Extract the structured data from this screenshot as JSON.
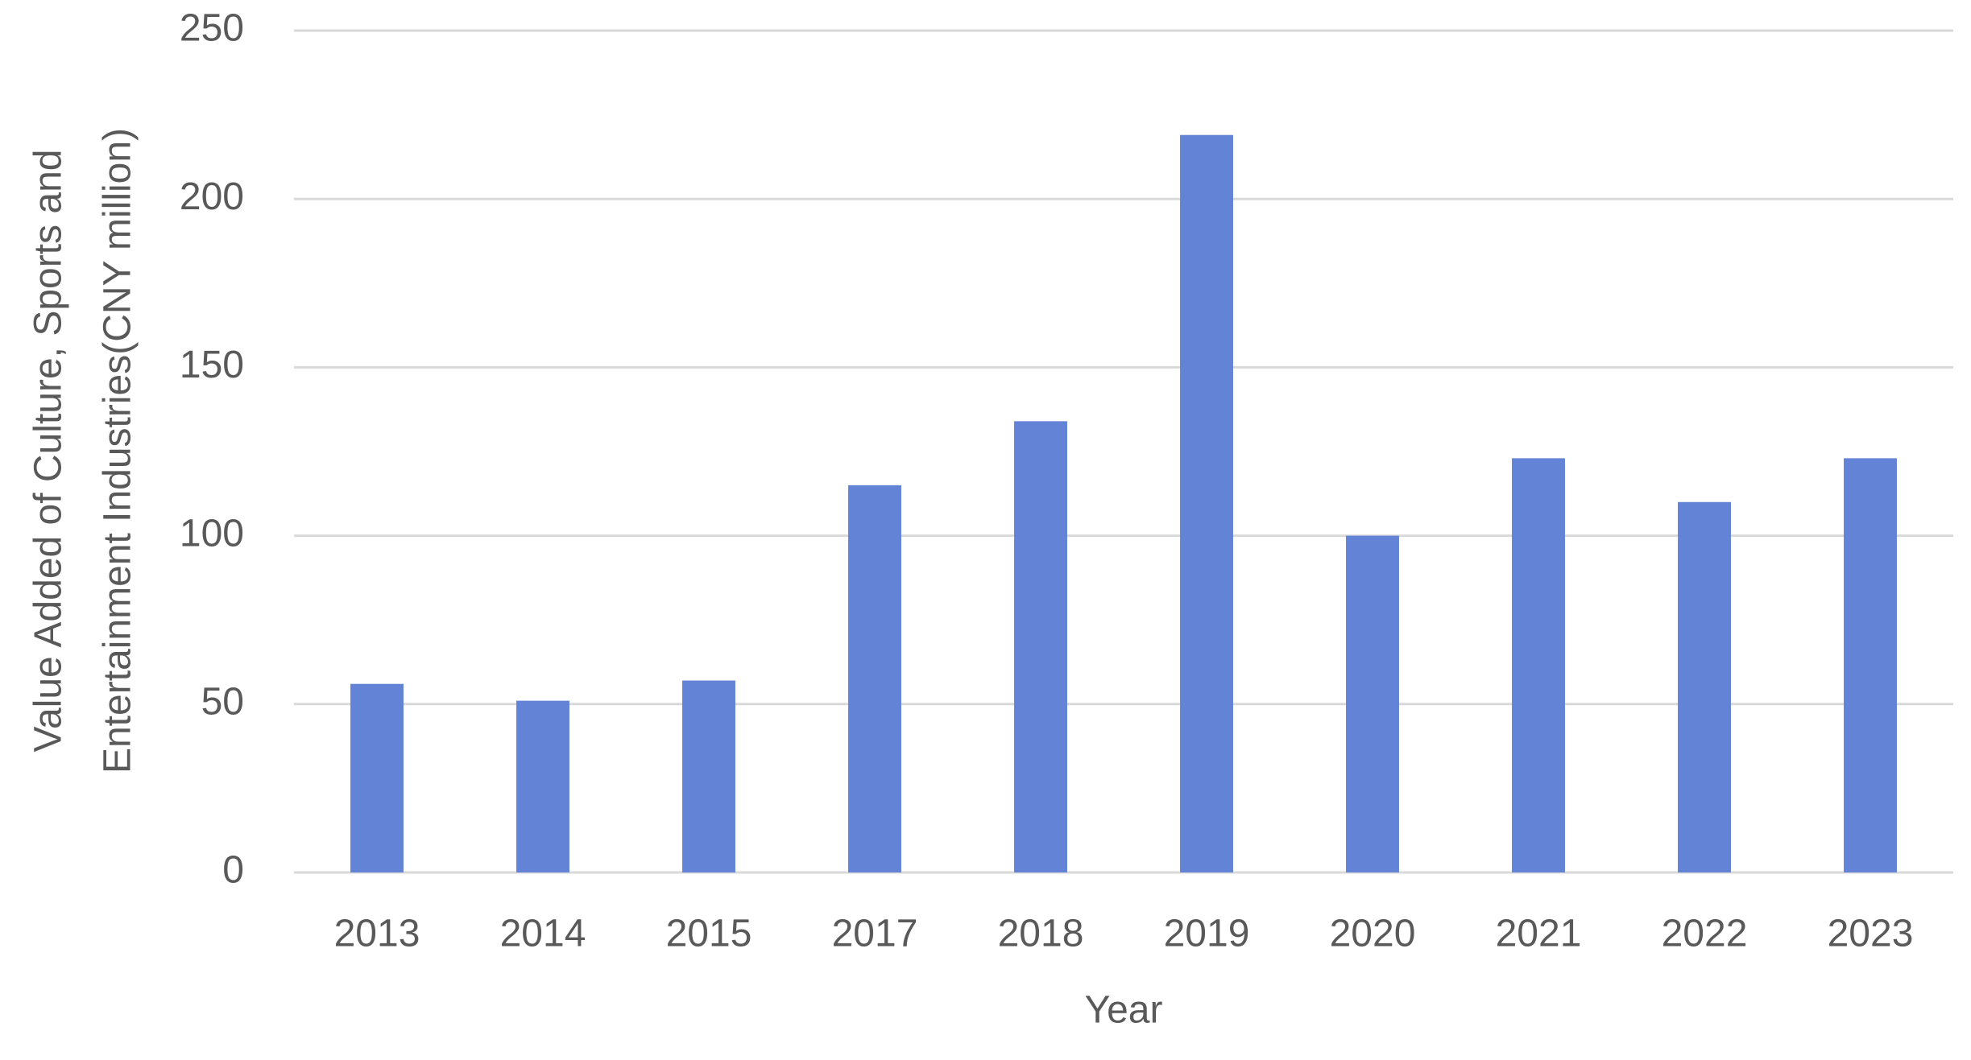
{
  "chart_data": {
    "type": "bar",
    "x_label": "Year",
    "y_label": [
      "Value Added of Culture, Sports and",
      "Entertainment Industries(CNY million)"
    ],
    "categories": [
      "2013",
      "2014",
      "2015",
      "2017",
      "2018",
      "2019",
      "2020",
      "2021",
      "2022",
      "2023"
    ],
    "values": [
      56,
      51,
      57,
      115,
      134,
      219,
      100,
      123,
      110,
      123
    ],
    "color": "#6283d6",
    "ylim": [
      0,
      250
    ],
    "yticks": [
      0,
      50,
      100,
      150,
      200,
      250
    ],
    "grid": true
  }
}
